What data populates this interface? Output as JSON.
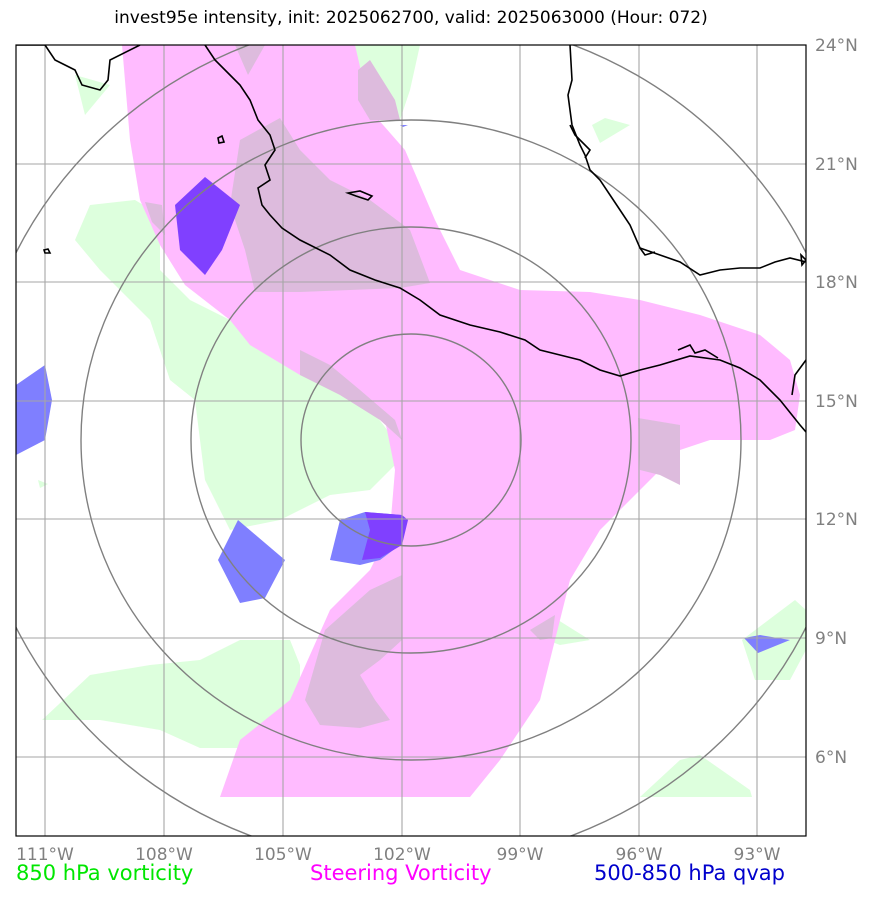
{
  "title": "invest95e intensity, init: 2025062700, valid: 2025063000 (Hour: 072)",
  "legend": [
    {
      "label": "850 hPa vorticity",
      "color": "#00e600"
    },
    {
      "label": "Steering Vorticity",
      "color": "#ff00ff"
    },
    {
      "label": "500-850 hPa qvap",
      "color": "#0000cc"
    }
  ],
  "map": {
    "lon_ticks": [
      "111°W",
      "108°W",
      "105°W",
      "102°W",
      "99°W",
      "96°W",
      "93°W"
    ],
    "lat_ticks": [
      "24°N",
      "21°N",
      "18°N",
      "15°N",
      "12°N",
      "9°N",
      "6°N"
    ],
    "extent": {
      "lon_min": -111.75,
      "lon_max": -91.75,
      "lat_min": 4.0,
      "lat_max": 24.0
    },
    "storm_center": {
      "lon": -102.0,
      "lat": 14.0
    },
    "range_ring_count": 4,
    "colors": {
      "vorticity_850": "#ddffdd",
      "steering_vorticity": "#ffbbff",
      "overlap": "#ddbbdd",
      "qvap": "#7f7fff",
      "qvap_overlap": "#8040ff",
      "coast": "#000000",
      "grid": "#a6a6a6",
      "rings": "#808080"
    }
  }
}
